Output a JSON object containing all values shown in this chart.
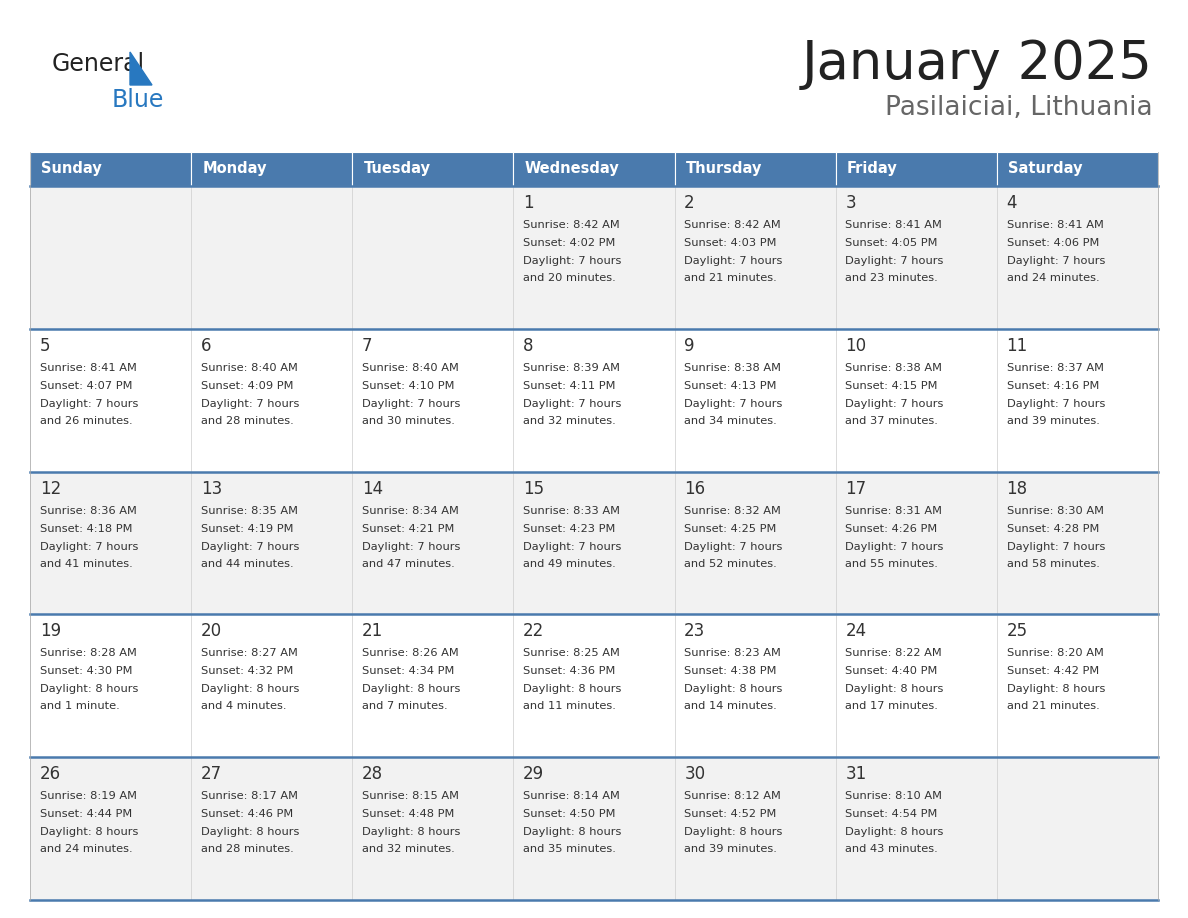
{
  "title": "January 2025",
  "subtitle": "Pasilaiciai, Lithuania",
  "days_of_week": [
    "Sunday",
    "Monday",
    "Tuesday",
    "Wednesday",
    "Thursday",
    "Friday",
    "Saturday"
  ],
  "header_bg": "#4a7aad",
  "header_text": "#ffffff",
  "cell_bg_odd": "#f2f2f2",
  "cell_bg_even": "#ffffff",
  "day_number_color": "#333333",
  "text_color": "#333333",
  "border_color": "#4a7aad",
  "title_color": "#222222",
  "subtitle_color": "#666666",
  "logo_general_color": "#222222",
  "logo_blue_color": "#2878c0",
  "calendar_data": [
    [
      {
        "day": null,
        "sunrise": null,
        "sunset": null,
        "daylight_line1": null,
        "daylight_line2": null
      },
      {
        "day": null,
        "sunrise": null,
        "sunset": null,
        "daylight_line1": null,
        "daylight_line2": null
      },
      {
        "day": null,
        "sunrise": null,
        "sunset": null,
        "daylight_line1": null,
        "daylight_line2": null
      },
      {
        "day": "1",
        "sunrise": "Sunrise: 8:42 AM",
        "sunset": "Sunset: 4:02 PM",
        "daylight_line1": "Daylight: 7 hours",
        "daylight_line2": "and 20 minutes."
      },
      {
        "day": "2",
        "sunrise": "Sunrise: 8:42 AM",
        "sunset": "Sunset: 4:03 PM",
        "daylight_line1": "Daylight: 7 hours",
        "daylight_line2": "and 21 minutes."
      },
      {
        "day": "3",
        "sunrise": "Sunrise: 8:41 AM",
        "sunset": "Sunset: 4:05 PM",
        "daylight_line1": "Daylight: 7 hours",
        "daylight_line2": "and 23 minutes."
      },
      {
        "day": "4",
        "sunrise": "Sunrise: 8:41 AM",
        "sunset": "Sunset: 4:06 PM",
        "daylight_line1": "Daylight: 7 hours",
        "daylight_line2": "and 24 minutes."
      }
    ],
    [
      {
        "day": "5",
        "sunrise": "Sunrise: 8:41 AM",
        "sunset": "Sunset: 4:07 PM",
        "daylight_line1": "Daylight: 7 hours",
        "daylight_line2": "and 26 minutes."
      },
      {
        "day": "6",
        "sunrise": "Sunrise: 8:40 AM",
        "sunset": "Sunset: 4:09 PM",
        "daylight_line1": "Daylight: 7 hours",
        "daylight_line2": "and 28 minutes."
      },
      {
        "day": "7",
        "sunrise": "Sunrise: 8:40 AM",
        "sunset": "Sunset: 4:10 PM",
        "daylight_line1": "Daylight: 7 hours",
        "daylight_line2": "and 30 minutes."
      },
      {
        "day": "8",
        "sunrise": "Sunrise: 8:39 AM",
        "sunset": "Sunset: 4:11 PM",
        "daylight_line1": "Daylight: 7 hours",
        "daylight_line2": "and 32 minutes."
      },
      {
        "day": "9",
        "sunrise": "Sunrise: 8:38 AM",
        "sunset": "Sunset: 4:13 PM",
        "daylight_line1": "Daylight: 7 hours",
        "daylight_line2": "and 34 minutes."
      },
      {
        "day": "10",
        "sunrise": "Sunrise: 8:38 AM",
        "sunset": "Sunset: 4:15 PM",
        "daylight_line1": "Daylight: 7 hours",
        "daylight_line2": "and 37 minutes."
      },
      {
        "day": "11",
        "sunrise": "Sunrise: 8:37 AM",
        "sunset": "Sunset: 4:16 PM",
        "daylight_line1": "Daylight: 7 hours",
        "daylight_line2": "and 39 minutes."
      }
    ],
    [
      {
        "day": "12",
        "sunrise": "Sunrise: 8:36 AM",
        "sunset": "Sunset: 4:18 PM",
        "daylight_line1": "Daylight: 7 hours",
        "daylight_line2": "and 41 minutes."
      },
      {
        "day": "13",
        "sunrise": "Sunrise: 8:35 AM",
        "sunset": "Sunset: 4:19 PM",
        "daylight_line1": "Daylight: 7 hours",
        "daylight_line2": "and 44 minutes."
      },
      {
        "day": "14",
        "sunrise": "Sunrise: 8:34 AM",
        "sunset": "Sunset: 4:21 PM",
        "daylight_line1": "Daylight: 7 hours",
        "daylight_line2": "and 47 minutes."
      },
      {
        "day": "15",
        "sunrise": "Sunrise: 8:33 AM",
        "sunset": "Sunset: 4:23 PM",
        "daylight_line1": "Daylight: 7 hours",
        "daylight_line2": "and 49 minutes."
      },
      {
        "day": "16",
        "sunrise": "Sunrise: 8:32 AM",
        "sunset": "Sunset: 4:25 PM",
        "daylight_line1": "Daylight: 7 hours",
        "daylight_line2": "and 52 minutes."
      },
      {
        "day": "17",
        "sunrise": "Sunrise: 8:31 AM",
        "sunset": "Sunset: 4:26 PM",
        "daylight_line1": "Daylight: 7 hours",
        "daylight_line2": "and 55 minutes."
      },
      {
        "day": "18",
        "sunrise": "Sunrise: 8:30 AM",
        "sunset": "Sunset: 4:28 PM",
        "daylight_line1": "Daylight: 7 hours",
        "daylight_line2": "and 58 minutes."
      }
    ],
    [
      {
        "day": "19",
        "sunrise": "Sunrise: 8:28 AM",
        "sunset": "Sunset: 4:30 PM",
        "daylight_line1": "Daylight: 8 hours",
        "daylight_line2": "and 1 minute."
      },
      {
        "day": "20",
        "sunrise": "Sunrise: 8:27 AM",
        "sunset": "Sunset: 4:32 PM",
        "daylight_line1": "Daylight: 8 hours",
        "daylight_line2": "and 4 minutes."
      },
      {
        "day": "21",
        "sunrise": "Sunrise: 8:26 AM",
        "sunset": "Sunset: 4:34 PM",
        "daylight_line1": "Daylight: 8 hours",
        "daylight_line2": "and 7 minutes."
      },
      {
        "day": "22",
        "sunrise": "Sunrise: 8:25 AM",
        "sunset": "Sunset: 4:36 PM",
        "daylight_line1": "Daylight: 8 hours",
        "daylight_line2": "and 11 minutes."
      },
      {
        "day": "23",
        "sunrise": "Sunrise: 8:23 AM",
        "sunset": "Sunset: 4:38 PM",
        "daylight_line1": "Daylight: 8 hours",
        "daylight_line2": "and 14 minutes."
      },
      {
        "day": "24",
        "sunrise": "Sunrise: 8:22 AM",
        "sunset": "Sunset: 4:40 PM",
        "daylight_line1": "Daylight: 8 hours",
        "daylight_line2": "and 17 minutes."
      },
      {
        "day": "25",
        "sunrise": "Sunrise: 8:20 AM",
        "sunset": "Sunset: 4:42 PM",
        "daylight_line1": "Daylight: 8 hours",
        "daylight_line2": "and 21 minutes."
      }
    ],
    [
      {
        "day": "26",
        "sunrise": "Sunrise: 8:19 AM",
        "sunset": "Sunset: 4:44 PM",
        "daylight_line1": "Daylight: 8 hours",
        "daylight_line2": "and 24 minutes."
      },
      {
        "day": "27",
        "sunrise": "Sunrise: 8:17 AM",
        "sunset": "Sunset: 4:46 PM",
        "daylight_line1": "Daylight: 8 hours",
        "daylight_line2": "and 28 minutes."
      },
      {
        "day": "28",
        "sunrise": "Sunrise: 8:15 AM",
        "sunset": "Sunset: 4:48 PM",
        "daylight_line1": "Daylight: 8 hours",
        "daylight_line2": "and 32 minutes."
      },
      {
        "day": "29",
        "sunrise": "Sunrise: 8:14 AM",
        "sunset": "Sunset: 4:50 PM",
        "daylight_line1": "Daylight: 8 hours",
        "daylight_line2": "and 35 minutes."
      },
      {
        "day": "30",
        "sunrise": "Sunrise: 8:12 AM",
        "sunset": "Sunset: 4:52 PM",
        "daylight_line1": "Daylight: 8 hours",
        "daylight_line2": "and 39 minutes."
      },
      {
        "day": "31",
        "sunrise": "Sunrise: 8:10 AM",
        "sunset": "Sunset: 4:54 PM",
        "daylight_line1": "Daylight: 8 hours",
        "daylight_line2": "and 43 minutes."
      },
      {
        "day": null,
        "sunrise": null,
        "sunset": null,
        "daylight_line1": null,
        "daylight_line2": null
      }
    ]
  ]
}
